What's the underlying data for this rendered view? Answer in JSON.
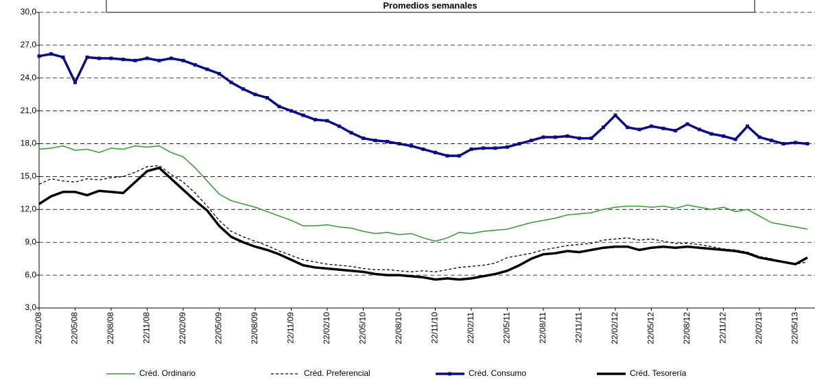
{
  "chart_data": {
    "type": "line",
    "title": "Promedios semanales",
    "categories": [
      "22/02/08",
      null,
      null,
      "22/05/08",
      null,
      null,
      "22/08/08",
      null,
      null,
      "22/11/08",
      null,
      null,
      "22/02/09",
      null,
      null,
      "22/05/09",
      null,
      null,
      "22/08/09",
      null,
      null,
      "22/11/09",
      null,
      null,
      "22/02/10",
      null,
      null,
      "22/05/10",
      null,
      null,
      "22/08/10",
      null,
      null,
      "22/11/10",
      null,
      null,
      "22/02/11",
      null,
      null,
      "22/05/11",
      null,
      null,
      "22/08/11",
      null,
      null,
      "22/11/11",
      null,
      null,
      "22/02/12",
      null,
      null,
      "22/05/12",
      null,
      null,
      "22/08/12",
      null,
      null,
      "22/11/12",
      null,
      null,
      "22/02/13",
      null,
      null,
      "22/05/13",
      null
    ],
    "series": [
      {
        "name": "Créd. Ordinario",
        "color": "#2e9b2e",
        "line_style": "solid",
        "values": [
          17.5,
          17.6,
          17.8,
          17.4,
          17.5,
          17.2,
          17.6,
          17.5,
          17.8,
          17.7,
          17.8,
          17.2,
          16.8,
          15.8,
          14.6,
          13.4,
          12.8,
          12.5,
          12.2,
          11.8,
          11.4,
          11.0,
          10.5,
          10.5,
          10.6,
          10.4,
          10.3,
          10.0,
          9.8,
          9.9,
          9.7,
          9.8,
          9.4,
          9.1,
          9.4,
          9.9,
          9.8,
          10.0,
          10.1,
          10.2,
          10.5,
          10.8,
          11.0,
          11.2,
          11.5,
          11.6,
          11.7,
          12.0,
          12.2,
          12.3,
          12.3,
          12.2,
          12.3,
          12.1,
          12.4,
          12.2,
          12.0,
          12.2,
          11.8,
          12.0,
          11.4,
          10.8,
          10.6,
          10.4,
          10.2
        ]
      },
      {
        "name": "Créd. Preferencial",
        "color": "#000000",
        "line_style": "dashed",
        "values": [
          14.3,
          14.8,
          14.6,
          14.5,
          14.8,
          14.7,
          14.9,
          15.0,
          15.4,
          15.9,
          16.0,
          15.2,
          14.5,
          13.5,
          12.3,
          11.0,
          10.0,
          9.5,
          9.1,
          8.7,
          8.2,
          7.8,
          7.4,
          7.2,
          7.0,
          6.9,
          6.8,
          6.6,
          6.5,
          6.5,
          6.4,
          6.3,
          6.4,
          6.3,
          6.5,
          6.7,
          6.8,
          6.9,
          7.1,
          7.6,
          7.8,
          8.0,
          8.3,
          8.5,
          8.7,
          8.8,
          8.9,
          9.2,
          9.3,
          9.4,
          9.2,
          9.3,
          9.1,
          8.9,
          8.9,
          8.8,
          8.6,
          8.4,
          8.3,
          8.1,
          7.7,
          7.5,
          7.2,
          7.0,
          7.2
        ]
      },
      {
        "name": "Créd. Consumo",
        "color": "#0a0a8c",
        "line_style": "thick",
        "marker": "square",
        "values": [
          26.0,
          26.2,
          25.9,
          23.6,
          25.9,
          25.8,
          25.8,
          25.7,
          25.6,
          25.8,
          25.6,
          25.8,
          25.6,
          25.2,
          24.8,
          24.4,
          23.6,
          23.0,
          22.5,
          22.2,
          21.4,
          21.0,
          20.6,
          20.2,
          20.1,
          19.6,
          19.0,
          18.5,
          18.3,
          18.2,
          18.0,
          17.8,
          17.5,
          17.2,
          16.9,
          16.9,
          17.5,
          17.6,
          17.6,
          17.7,
          18.0,
          18.3,
          18.6,
          18.6,
          18.7,
          18.5,
          18.5,
          19.5,
          20.6,
          19.5,
          19.3,
          19.6,
          19.4,
          19.2,
          19.8,
          19.3,
          18.9,
          18.7,
          18.4,
          19.6,
          18.6,
          18.3,
          18.0,
          18.1,
          18.0
        ]
      },
      {
        "name": "Créd. Tesorería",
        "color": "#000000",
        "line_style": "thick",
        "values": [
          12.5,
          13.2,
          13.6,
          13.6,
          13.3,
          13.7,
          13.6,
          13.5,
          14.5,
          15.5,
          15.8,
          14.8,
          13.8,
          12.8,
          11.9,
          10.5,
          9.5,
          9.0,
          8.6,
          8.3,
          7.9,
          7.4,
          6.9,
          6.7,
          6.6,
          6.5,
          6.4,
          6.3,
          6.1,
          6.0,
          6.0,
          5.9,
          5.8,
          5.6,
          5.7,
          5.6,
          5.7,
          5.9,
          6.1,
          6.4,
          6.9,
          7.5,
          7.9,
          8.0,
          8.2,
          8.1,
          8.3,
          8.5,
          8.6,
          8.6,
          8.3,
          8.5,
          8.6,
          8.5,
          8.6,
          8.5,
          8.4,
          8.3,
          8.2,
          8.0,
          7.6,
          7.4,
          7.2,
          7.0,
          7.6
        ]
      }
    ],
    "ylim": [
      3,
      30
    ],
    "yticks": [
      {
        "value": 3,
        "label": "3,0"
      },
      {
        "value": 6,
        "label": "6,0"
      },
      {
        "value": 9,
        "label": "9,0"
      },
      {
        "value": 12,
        "label": "12,0"
      },
      {
        "value": 15,
        "label": "15,0"
      },
      {
        "value": 18,
        "label": "18,0"
      },
      {
        "value": 21,
        "label": "21,0"
      },
      {
        "value": 24,
        "label": "24,0"
      },
      {
        "value": 27,
        "label": "27,0"
      },
      {
        "value": 30,
        "label": "30,0"
      }
    ],
    "grid": true,
    "legend": "bottom"
  }
}
